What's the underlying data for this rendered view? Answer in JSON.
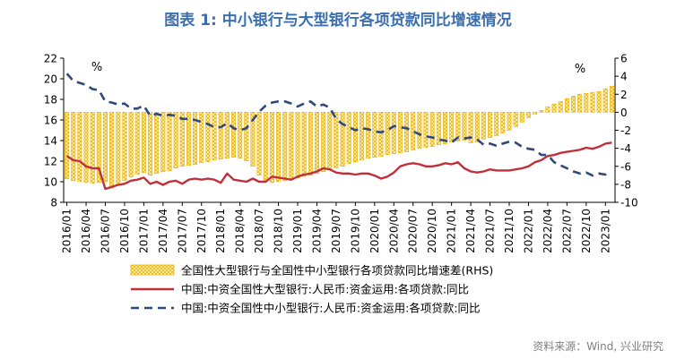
{
  "title": "图表 1:  中小银行与大型银行各项贷款同比增速情况",
  "source": "资料来源：Wind, 兴业研究",
  "chart_data": {
    "type": "bar+line",
    "left_axis": {
      "ylim": [
        8,
        22
      ],
      "ticks": [
        8,
        10,
        12,
        14,
        16,
        18,
        20,
        22
      ],
      "unit": "%"
    },
    "right_axis": {
      "ylim": [
        -10,
        6
      ],
      "ticks": [
        -10,
        -8,
        -6,
        -4,
        -2,
        0,
        2,
        4,
        6
      ],
      "unit": "%"
    },
    "x_tick_labels": [
      "2016/01",
      "2016/04",
      "2016/07",
      "2016/10",
      "2017/01",
      "2017/04",
      "2017/07",
      "2017/10",
      "2018/01",
      "2018/04",
      "2018/07",
      "2018/10",
      "2019/01",
      "2019/04",
      "2019/07",
      "2019/10",
      "2020/01",
      "2020/04",
      "2020/07",
      "2020/10",
      "2021/01",
      "2021/04",
      "2021/07",
      "2021/10",
      "2022/01",
      "2022/04",
      "2022/07",
      "2022/10",
      "2023/01"
    ],
    "months": [
      "2016/01",
      "2016/02",
      "2016/03",
      "2016/04",
      "2016/05",
      "2016/06",
      "2016/07",
      "2016/08",
      "2016/09",
      "2016/10",
      "2016/11",
      "2016/12",
      "2017/01",
      "2017/02",
      "2017/03",
      "2017/04",
      "2017/05",
      "2017/06",
      "2017/07",
      "2017/08",
      "2017/09",
      "2017/10",
      "2017/11",
      "2017/12",
      "2018/01",
      "2018/02",
      "2018/03",
      "2018/04",
      "2018/05",
      "2018/06",
      "2018/07",
      "2018/08",
      "2018/09",
      "2018/10",
      "2018/11",
      "2018/12",
      "2019/01",
      "2019/02",
      "2019/03",
      "2019/04",
      "2019/05",
      "2019/06",
      "2019/07",
      "2019/08",
      "2019/09",
      "2019/10",
      "2019/11",
      "2019/12",
      "2020/01",
      "2020/02",
      "2020/03",
      "2020/04",
      "2020/05",
      "2020/06",
      "2020/07",
      "2020/08",
      "2020/09",
      "2020/10",
      "2020/11",
      "2020/12",
      "2021/01",
      "2021/02",
      "2021/03",
      "2021/04",
      "2021/05",
      "2021/06",
      "2021/07",
      "2021/08",
      "2021/09",
      "2021/10",
      "2021/11",
      "2021/12",
      "2022/01",
      "2022/02",
      "2022/03",
      "2022/04",
      "2022/05",
      "2022/06",
      "2022/07",
      "2022/08",
      "2022/09",
      "2022/10",
      "2022/11",
      "2022/12",
      "2023/01",
      "2023/02"
    ],
    "series": [
      {
        "name": "全国性大型银行与全国性中小型银行各项贷款同比增速差(RHS)",
        "axis": "right",
        "kind": "bar",
        "color": "#f0b400",
        "values": [
          -7.4,
          -7.6,
          -7.7,
          -7.8,
          -7.9,
          -7.8,
          -7.7,
          -8.4,
          -8.0,
          -7.6,
          -7.2,
          -6.9,
          -6.7,
          -7.0,
          -6.8,
          -6.6,
          -6.5,
          -6.2,
          -6.0,
          -5.9,
          -5.8,
          -5.6,
          -5.5,
          -5.3,
          -5.2,
          -5.1,
          -5.0,
          -5.1,
          -5.4,
          -6.0,
          -7.0,
          -7.6,
          -7.8,
          -7.7,
          -7.6,
          -7.5,
          -7.3,
          -7.1,
          -7.0,
          -6.8,
          -6.6,
          -6.4,
          -6.2,
          -6.0,
          -5.7,
          -5.5,
          -5.3,
          -5.1,
          -5.0,
          -4.9,
          -4.7,
          -4.6,
          -4.5,
          -4.4,
          -4.2,
          -4.0,
          -3.9,
          -3.8,
          -3.6,
          -3.5,
          -3.3,
          -3.2,
          -3.1,
          -3.4,
          -3.3,
          -3.0,
          -2.8,
          -2.6,
          -2.3,
          -2.0,
          -1.6,
          -1.1,
          -0.6,
          -0.2,
          0.2,
          0.6,
          0.9,
          1.2,
          1.5,
          1.8,
          2.0,
          2.1,
          2.2,
          2.3,
          2.6,
          2.9
        ]
      },
      {
        "name": "中国:中资全国性大型银行:人民币:资金运用:各项贷款:同比",
        "axis": "left",
        "kind": "line",
        "style": "solid",
        "color": "#c0303a",
        "values": [
          12.5,
          12.1,
          12.0,
          11.5,
          11.3,
          11.3,
          9.3,
          9.5,
          9.7,
          9.8,
          10.1,
          10.2,
          10.4,
          9.8,
          10.0,
          9.7,
          10.0,
          10.1,
          9.8,
          10.2,
          10.3,
          10.2,
          10.3,
          10.2,
          9.9,
          10.8,
          10.2,
          10.1,
          10.0,
          10.3,
          10.0,
          10.0,
          10.5,
          10.4,
          10.3,
          10.2,
          10.5,
          10.7,
          10.8,
          11.0,
          11.3,
          11.2,
          10.9,
          10.8,
          10.8,
          10.7,
          10.8,
          10.8,
          10.6,
          10.3,
          10.5,
          10.9,
          11.5,
          11.7,
          11.8,
          11.7,
          11.5,
          11.5,
          11.6,
          11.8,
          11.7,
          11.9,
          11.3,
          11.0,
          10.9,
          11.0,
          11.2,
          11.1,
          11.1,
          11.1,
          11.2,
          11.3,
          11.5,
          11.9,
          12.1,
          12.5,
          12.6,
          12.8,
          12.9,
          13.0,
          13.1,
          13.3,
          13.2,
          13.4,
          13.7,
          13.8
        ]
      },
      {
        "name": "中国:中资全国性中小型银行:人民币:资金运用:各项贷款:同比",
        "axis": "left",
        "kind": "line",
        "style": "dashed",
        "color": "#2f4a7a",
        "values": [
          20.5,
          19.8,
          19.6,
          19.4,
          19.0,
          18.9,
          17.8,
          17.7,
          17.5,
          17.6,
          17.1,
          17.1,
          17.4,
          16.4,
          16.6,
          16.4,
          16.5,
          16.4,
          16.1,
          16.1,
          16.0,
          15.8,
          15.6,
          15.3,
          15.3,
          15.7,
          15.2,
          15.0,
          15.2,
          16.0,
          16.8,
          17.4,
          17.7,
          17.8,
          17.8,
          17.6,
          17.3,
          17.6,
          17.8,
          17.3,
          17.5,
          17.2,
          16.1,
          15.6,
          15.3,
          15.0,
          15.2,
          15.1,
          14.9,
          14.8,
          15.0,
          15.4,
          15.3,
          15.2,
          14.9,
          14.6,
          14.4,
          14.3,
          14.1,
          14.0,
          13.8,
          14.3,
          14.2,
          14.3,
          14.1,
          13.6,
          13.7,
          13.5,
          13.7,
          13.9,
          13.8,
          13.4,
          13.2,
          13.1,
          12.6,
          12.6,
          11.9,
          11.6,
          11.3,
          11.0,
          10.8,
          10.9,
          10.6,
          10.8,
          10.7,
          10.7
        ]
      }
    ]
  }
}
